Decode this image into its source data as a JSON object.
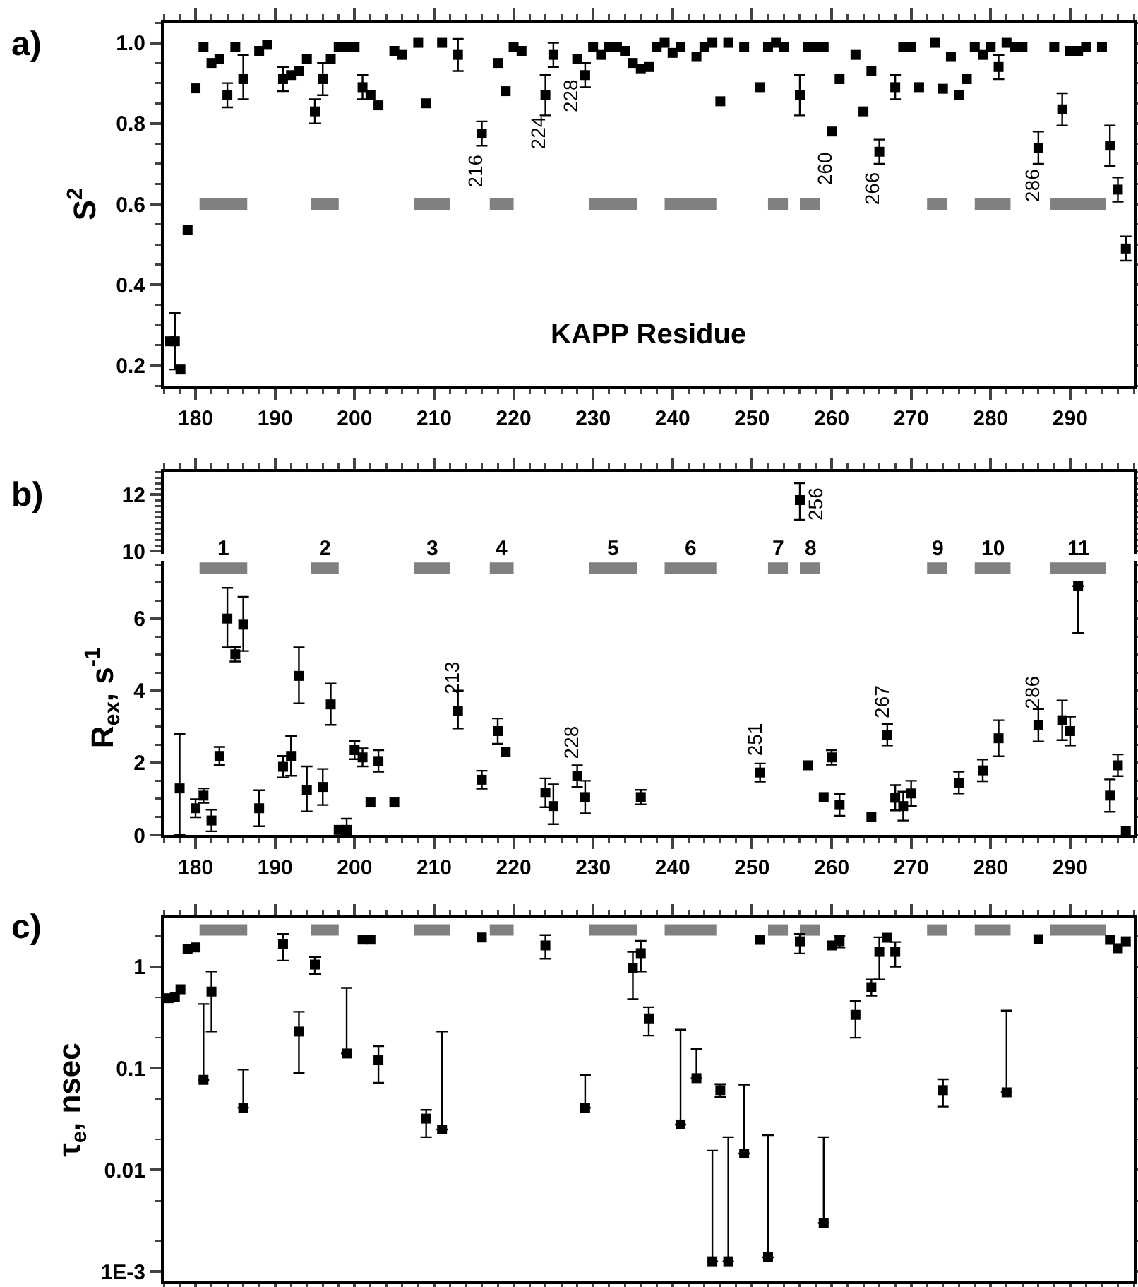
{
  "chart_data": [
    {
      "type": "scatter",
      "title": "a)",
      "ylabel": "S$^{2}$",
      "xlabel": "KAPP Residue",
      "xlim": [
        176,
        298
      ],
      "xticks": [
        180,
        190,
        200,
        210,
        220,
        230,
        240,
        250,
        260,
        270,
        280,
        290
      ],
      "ylim": [
        0.15,
        1.05
      ],
      "yticks": [
        0.2,
        0.4,
        0.6,
        0.8,
        {
          "value": 1,
          "label": "1.0"
        }
      ],
      "series": [
        {
          "color": "#000000",
          "marker": "square",
          "x": [
            176.8,
            177.4,
            178.1,
            179,
            180,
            181,
            182,
            183,
            184,
            185,
            186,
            188,
            189,
            191,
            192,
            193,
            194,
            195,
            196,
            197,
            198,
            199,
            200,
            201,
            202,
            203,
            205,
            206,
            208,
            209,
            211,
            213,
            216,
            218,
            219,
            220,
            221,
            224,
            225,
            228,
            229,
            230,
            231,
            232,
            233,
            234,
            235,
            236,
            237,
            238,
            239,
            240,
            241,
            243,
            244,
            245,
            246,
            247,
            249,
            251,
            252,
            253,
            254,
            256,
            257,
            258,
            259,
            260,
            261,
            263,
            264,
            265,
            266,
            268,
            269,
            270,
            271,
            273,
            274,
            275,
            276,
            277,
            278,
            279,
            280,
            281,
            282,
            283,
            284,
            286,
            288,
            289,
            290,
            291,
            292,
            294,
            295,
            296,
            297
          ],
          "values": [
            0.26,
            0.26,
            0.19,
            0.537,
            0.887,
            0.99,
            0.95,
            0.96,
            0.87,
            0.99,
            0.91,
            0.98,
            0.995,
            0.91,
            0.92,
            0.93,
            0.96,
            0.83,
            0.91,
            0.96,
            0.99,
            0.99,
            0.99,
            0.89,
            0.87,
            0.845,
            0.98,
            0.97,
            1.0,
            0.85,
            1.0,
            0.97,
            0.775,
            0.95,
            0.88,
            0.99,
            0.98,
            0.87,
            0.97,
            0.96,
            0.92,
            0.99,
            0.97,
            0.99,
            0.99,
            0.98,
            0.95,
            0.935,
            0.94,
            0.99,
            1.0,
            0.975,
            0.99,
            0.965,
            0.99,
            1.0,
            0.855,
            1.0,
            0.99,
            0.89,
            0.99,
            1.0,
            0.99,
            0.87,
            0.99,
            0.99,
            0.99,
            0.78,
            0.91,
            0.97,
            0.83,
            0.93,
            0.73,
            0.89,
            0.99,
            0.99,
            0.89,
            1.0,
            0.886,
            0.965,
            0.87,
            0.91,
            0.99,
            0.97,
            0.99,
            0.94,
            1.0,
            0.99,
            0.99,
            0.74,
            0.99,
            0.835,
            0.98,
            0.98,
            0.99,
            0.99,
            0.745,
            0.636,
            0.49
          ],
          "errors": [
            null,
            0.07,
            null,
            null,
            null,
            null,
            null,
            null,
            0.03,
            null,
            [
              0.86,
              0.97
            ],
            null,
            null,
            0.03,
            null,
            null,
            null,
            0.03,
            0.04,
            null,
            null,
            null,
            null,
            0.03,
            null,
            null,
            null,
            null,
            null,
            null,
            null,
            0.04,
            0.03,
            null,
            null,
            null,
            null,
            0.05,
            0.03,
            null,
            0.03,
            null,
            null,
            null,
            null,
            null,
            null,
            null,
            null,
            null,
            null,
            null,
            null,
            null,
            null,
            null,
            null,
            null,
            null,
            null,
            null,
            null,
            null,
            0.05,
            null,
            null,
            null,
            null,
            null,
            null,
            null,
            null,
            0.03,
            0.03,
            null,
            null,
            null,
            null,
            null,
            null,
            null,
            null,
            null,
            null,
            null,
            0.03,
            null,
            null,
            null,
            0.04,
            null,
            0.04,
            null,
            null,
            null,
            null,
            0.05,
            0.03,
            0.03
          ]
        },
        {
          "type": "line",
          "color": "#808080",
          "x": [
            180.5,
            186.5
          ],
          "values": [
            0.6,
            0.6
          ]
        },
        {
          "type": "line",
          "color": "#808080",
          "x": [
            194.5,
            198
          ],
          "values": [
            0.6,
            0.6
          ]
        },
        {
          "type": "line",
          "color": "#808080",
          "x": [
            207.5,
            212
          ],
          "values": [
            0.6,
            0.6
          ]
        },
        {
          "type": "line",
          "color": "#808080",
          "x": [
            217,
            220
          ],
          "values": [
            0.6,
            0.6
          ]
        },
        {
          "type": "line",
          "color": "#808080",
          "x": [
            229.5,
            235.5
          ],
          "values": [
            0.6,
            0.6
          ]
        },
        {
          "type": "line",
          "color": "#808080",
          "x": [
            239,
            245.5
          ],
          "values": [
            0.6,
            0.6
          ]
        },
        {
          "type": "line",
          "color": "#808080",
          "x": [
            252,
            254.5
          ],
          "values": [
            0.6,
            0.6
          ]
        },
        {
          "type": "line",
          "color": "#808080",
          "x": [
            256,
            258.5
          ],
          "values": [
            0.6,
            0.6
          ]
        },
        {
          "type": "line",
          "color": "#808080",
          "x": [
            272,
            274.5
          ],
          "values": [
            0.6,
            0.6
          ]
        },
        {
          "type": "line",
          "color": "#808080",
          "x": [
            278,
            282.5
          ],
          "values": [
            0.6,
            0.6
          ]
        },
        {
          "type": "line",
          "color": "#808080",
          "x": [
            287.5,
            294.5
          ],
          "values": [
            0.6,
            0.6
          ]
        }
      ],
      "annotations": [
        {
          "text": "216",
          "x": 216,
          "y": 0.775
        },
        {
          "text": "224",
          "x": 224,
          "y": 0.87
        },
        {
          "text": "228",
          "x": 228,
          "y": 0.96
        },
        {
          "text": "260",
          "x": 260,
          "y": 0.78
        },
        {
          "text": "266",
          "x": 266,
          "y": 0.73
        },
        {
          "text": "286",
          "x": 286,
          "y": 0.74
        }
      ]
    },
    {
      "type": "scatter",
      "title": "b)",
      "xlim": [
        176,
        298
      ],
      "xticks": [
        180,
        190,
        200,
        210,
        220,
        230,
        240,
        250,
        260,
        270,
        280,
        290
      ],
      "ylim": [
        9.9,
        12.8
      ],
      "yticks": [
        10,
        12
      ],
      "tick_labels": "y",
      "series": [
        {
          "color": "#000000",
          "marker": "square",
          "x": [
            256
          ],
          "values": [
            11.8
          ],
          "errors": [
            [
              11.1,
              12.4
            ]
          ]
        }
      ],
      "annotations": [
        {
          "text": "256",
          "x": 256,
          "y": 11.8
        }
      ]
    },
    {
      "type": "scatter",
      "ylabel": "R$_{ex}$, s$^{-1}$",
      "xlim": [
        176,
        298
      ],
      "xticks": [
        180,
        190,
        200,
        210,
        220,
        230,
        240,
        250,
        260,
        270,
        280,
        290
      ],
      "ylim": [
        0,
        7.6
      ],
      "yticks": [
        0,
        2,
        4,
        6
      ],
      "series": [
        {
          "color": "#000000",
          "marker": "square",
          "x": [
            178,
            180,
            181,
            182,
            183,
            184,
            185,
            186,
            188,
            191,
            192,
            193,
            194,
            196,
            197,
            198,
            199,
            200,
            201,
            202,
            203,
            205,
            213,
            216,
            218,
            219,
            224,
            225,
            228,
            229,
            236,
            251,
            257,
            259,
            260,
            261,
            265,
            267,
            268,
            269,
            270,
            276,
            279,
            281,
            286,
            289,
            290,
            291,
            295,
            296,
            297
          ],
          "values": [
            1.29,
            0.74,
            1.09,
            0.4,
            2.19,
            6.0,
            5.01,
            5.83,
            0.74,
            1.89,
            2.19,
            4.41,
            1.25,
            1.33,
            3.62,
            0.14,
            0.14,
            2.35,
            2.15,
            0.9,
            2.05,
            0.9,
            3.44,
            1.53,
            2.88,
            2.31,
            1.17,
            0.8,
            1.63,
            1.05,
            1.05,
            1.73,
            1.93,
            1.05,
            2.15,
            0.83,
            0.5,
            2.78,
            1.03,
            0.8,
            1.15,
            1.45,
            1.79,
            2.68,
            3.04,
            3.18,
            2.88,
            6.9,
            1.09,
            1.93,
            0.1
          ],
          "errors": [
            [
              0,
              2.8
            ],
            0.25,
            0.2,
            0.3,
            0.25,
            [
              5.2,
              6.85
            ],
            0.2,
            [
              5.1,
              6.6
            ],
            0.5,
            0.3,
            0.55,
            [
              3.65,
              5.2
            ],
            [
              0.65,
              1.9
            ],
            0.5,
            [
              3.05,
              4.2
            ],
            null,
            [
              0,
              0.45
            ],
            0.25,
            0.25,
            null,
            0.3,
            null,
            [
              2.95,
              4.0
            ],
            0.25,
            0.35,
            null,
            0.4,
            [
              0.3,
              1.4
            ],
            0.3,
            [
              0.6,
              1.5
            ],
            0.2,
            0.25,
            null,
            null,
            0.2,
            0.3,
            null,
            0.3,
            0.35,
            0.4,
            0.35,
            0.3,
            0.3,
            0.5,
            0.45,
            0.55,
            0.4,
            [
              5.6,
              6.9
            ],
            0.45,
            0.3,
            null
          ]
        },
        {
          "type": "line",
          "name": "1",
          "color": "#808080",
          "x": [
            180.5,
            186.5
          ],
          "values": [
            7.4,
            7.4
          ]
        },
        {
          "type": "line",
          "name": "2",
          "color": "#808080",
          "x": [
            194.5,
            198
          ],
          "values": [
            7.4,
            7.4
          ]
        },
        {
          "type": "line",
          "name": "3",
          "color": "#808080",
          "x": [
            207.5,
            212
          ],
          "values": [
            7.4,
            7.4
          ]
        },
        {
          "type": "line",
          "name": "4",
          "color": "#808080",
          "x": [
            217,
            220
          ],
          "values": [
            7.4,
            7.4
          ]
        },
        {
          "type": "line",
          "name": "5",
          "color": "#808080",
          "x": [
            229.5,
            235.5
          ],
          "values": [
            7.4,
            7.4
          ]
        },
        {
          "type": "line",
          "name": "6",
          "color": "#808080",
          "x": [
            239,
            245.5
          ],
          "values": [
            7.4,
            7.4
          ]
        },
        {
          "type": "line",
          "name": "7",
          "color": "#808080",
          "x": [
            252,
            254.5
          ],
          "values": [
            7.4,
            7.4
          ]
        },
        {
          "type": "line",
          "name": "8",
          "color": "#808080",
          "x": [
            256,
            258.5
          ],
          "values": [
            7.4,
            7.4
          ]
        },
        {
          "type": "line",
          "name": "9",
          "color": "#808080",
          "x": [
            272,
            274.5
          ],
          "values": [
            7.4,
            7.4
          ]
        },
        {
          "type": "line",
          "name": "10",
          "color": "#808080",
          "x": [
            278,
            282.5
          ],
          "values": [
            7.4,
            7.4
          ]
        },
        {
          "type": "line",
          "name": "11",
          "color": "#808080",
          "x": [
            287.5,
            294.5
          ],
          "values": [
            7.4,
            7.4
          ]
        }
      ],
      "annotations": [
        {
          "text": "213",
          "x": 213,
          "y": 3.44
        },
        {
          "text": "228",
          "x": 228,
          "y": 1.63
        },
        {
          "text": "251",
          "x": 251,
          "y": 1.73
        },
        {
          "text": "267",
          "x": 267,
          "y": 2.78
        },
        {
          "text": "286",
          "x": 286,
          "y": 3.04
        }
      ]
    },
    {
      "type": "scatter",
      "title": "c)",
      "ylabel": "τ$_{e}$, nsec",
      "log": true,
      "xlim": [
        176,
        298
      ],
      "xticks": [
        180,
        190,
        200,
        210,
        220,
        230,
        240,
        250,
        260,
        270,
        280,
        290
      ],
      "ylim": [
        0.0008,
        3
      ],
      "yticks": [
        {
          "value": 0.001,
          "label": "1E-3"
        },
        0.01,
        0.1,
        1
      ],
      "tick_labels": "y",
      "series": [
        {
          "color": "#000000",
          "marker": "square",
          "x": [
            176.6,
            177.4,
            178.1,
            179,
            180,
            181,
            182,
            186,
            191,
            193,
            195,
            199,
            201,
            202,
            203,
            209,
            211,
            216,
            224,
            229,
            235,
            236,
            237,
            241,
            243,
            245,
            246,
            247,
            249,
            251,
            252,
            256,
            259,
            260,
            261,
            263,
            265,
            266,
            267,
            268,
            274,
            282,
            286,
            295,
            296,
            297
          ],
          "values": [
            0.49,
            0.5,
            0.6,
            1.5,
            1.55,
            0.077,
            0.57,
            0.041,
            1.67,
            0.23,
            1.05,
            0.14,
            1.85,
            1.85,
            0.12,
            0.032,
            0.025,
            1.94,
            1.62,
            0.041,
            0.97,
            1.36,
            0.31,
            0.028,
            0.08,
            0.00126,
            0.061,
            0.00126,
            0.0145,
            1.84,
            0.00138,
            1.78,
            0.003,
            1.62,
            1.78,
            0.336,
            0.63,
            1.4,
            1.93,
            1.4,
            0.061,
            0.058,
            1.87,
            1.84,
            1.52,
            1.78
          ],
          "errors": [
            null,
            null,
            null,
            null,
            null,
            [
              0.077,
              0.43
            ],
            [
              0.23,
              0.9
            ],
            [
              0.041,
              0.097
            ],
            [
              1.15,
              2.1
            ],
            [
              0.09,
              0.36
            ],
            [
              0.85,
              1.25
            ],
            [
              0.14,
              0.62
            ],
            null,
            null,
            [
              0.072,
              0.165
            ],
            [
              0.021,
              0.039
            ],
            [
              0.025,
              0.23
            ],
            null,
            [
              1.2,
              2.05
            ],
            [
              0.041,
              0.086
            ],
            [
              0.48,
              1.4
            ],
            [
              0.9,
              1.8
            ],
            [
              0.21,
              0.4
            ],
            [
              0.028,
              0.24
            ],
            [
              0.08,
              0.155
            ],
            [
              0.00126,
              0.0155
            ],
            [
              0.052,
              0.07
            ],
            [
              0.00126,
              0.021
            ],
            [
              0.0145,
              0.069
            ],
            null,
            [
              0.00138,
              0.022
            ],
            [
              1.35,
              2.1
            ],
            [
              0.003,
              0.021
            ],
            null,
            [
              1.55,
              2.0
            ],
            [
              0.2,
              0.46
            ],
            [
              0.52,
              0.75
            ],
            [
              0.75,
              1.95
            ],
            null,
            [
              1.0,
              1.75
            ],
            [
              0.042,
              0.078
            ],
            [
              0.058,
              0.37
            ],
            null,
            null,
            null,
            null
          ]
        },
        {
          "type": "line",
          "color": "#808080",
          "x": [
            180.5,
            186.5
          ],
          "values": [
            2.3,
            2.3
          ]
        },
        {
          "type": "line",
          "color": "#808080",
          "x": [
            194.5,
            198
          ],
          "values": [
            2.3,
            2.3
          ]
        },
        {
          "type": "line",
          "color": "#808080",
          "x": [
            207.5,
            212
          ],
          "values": [
            2.3,
            2.3
          ]
        },
        {
          "type": "line",
          "color": "#808080",
          "x": [
            217,
            220
          ],
          "values": [
            2.3,
            2.3
          ]
        },
        {
          "type": "line",
          "color": "#808080",
          "x": [
            229.5,
            235.5
          ],
          "values": [
            2.3,
            2.3
          ]
        },
        {
          "type": "line",
          "color": "#808080",
          "x": [
            239,
            245.5
          ],
          "values": [
            2.3,
            2.3
          ]
        },
        {
          "type": "line",
          "color": "#808080",
          "x": [
            252,
            254.5
          ],
          "values": [
            2.3,
            2.3
          ]
        },
        {
          "type": "line",
          "color": "#808080",
          "x": [
            256,
            258.5
          ],
          "values": [
            2.3,
            2.3
          ]
        },
        {
          "type": "line",
          "color": "#808080",
          "x": [
            272,
            274.5
          ],
          "values": [
            2.3,
            2.3
          ]
        },
        {
          "type": "line",
          "color": "#808080",
          "x": [
            278,
            282.5
          ],
          "values": [
            2.3,
            2.3
          ]
        },
        {
          "type": "line",
          "color": "#808080",
          "x": [
            287.5,
            294.5
          ],
          "values": [
            2.3,
            2.3
          ]
        }
      ]
    }
  ]
}
